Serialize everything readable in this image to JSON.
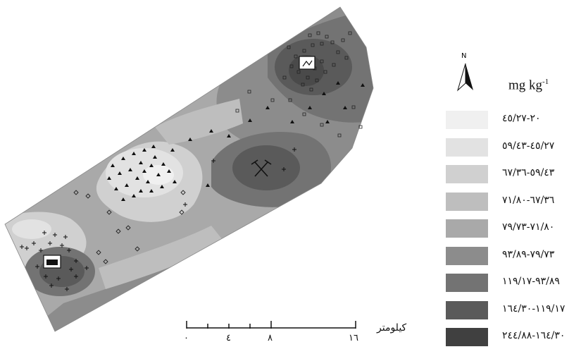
{
  "legend": {
    "unit": "mg kg",
    "unit_sup": "-1",
    "classes": [
      {
        "label": "٢٠-٤٥/٢٧",
        "color": "#f0f0f0"
      },
      {
        "label": "٤٥/٢٧-٥٩/٤٣",
        "color": "#e2e2e2"
      },
      {
        "label": "٥٩/٤٣-٦٧/٣٦",
        "color": "#d0d0d0"
      },
      {
        "label": "٦٧/٣٦-٧١/٨٠",
        "color": "#bebebe"
      },
      {
        "label": "٧١/٨٠-٧٩/٧٣",
        "color": "#a9a9a9"
      },
      {
        "label": "٧٩/٧٣-٩٣/٨٩",
        "color": "#8c8c8c"
      },
      {
        "label": "٩٣/٨٩-١١٩/١٧",
        "color": "#737373"
      },
      {
        "label": "١١٩/١٧-١٦٤/٣٠",
        "color": "#5a5a5a"
      },
      {
        "label": "١٦٤/٣٠-٢٤٤/٨٨",
        "color": "#404040"
      }
    ]
  },
  "north_arrow": {
    "label": "N"
  },
  "scale_bar": {
    "ticks": [
      "٠",
      "٤",
      "٨",
      "١٦"
    ],
    "unit": "کیلومتر"
  },
  "symbols": {
    "mine": "crossed-hammers-icon",
    "sample_sets": [
      "cross",
      "diamond",
      "triangle",
      "square"
    ]
  }
}
